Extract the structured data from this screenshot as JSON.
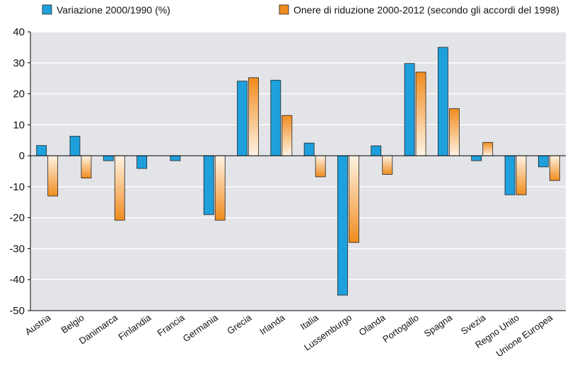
{
  "chart_data": {
    "type": "bar",
    "categories": [
      "Austria",
      "Belgio",
      "Danimarca",
      "Finlandia",
      "Francia",
      "Germania",
      "Grecia",
      "Irlanda",
      "Italia",
      "Lussemburgo",
      "Olanda",
      "Portogallo",
      "Spagna",
      "Svezia",
      "Regno Unito",
      "Unione Europea"
    ],
    "series": [
      {
        "name": "Variazione 2000/1990 (%)",
        "values": [
          3.3,
          6.3,
          -1.6,
          -4.1,
          -1.6,
          -19.0,
          24.1,
          24.4,
          4.1,
          -45.0,
          3.2,
          29.8,
          35.0,
          -1.6,
          -12.6,
          -3.6
        ]
      },
      {
        "name": "Onere di riduzione 2000-2012 (secondo gli accordi del 1998)",
        "values": [
          -13.0,
          -7.2,
          -20.8,
          0.0,
          0.0,
          -20.8,
          25.2,
          13.0,
          -6.8,
          -28.0,
          -6.0,
          27.0,
          15.2,
          4.3,
          -12.6,
          -8.0
        ]
      }
    ],
    "ylim": [
      -50,
      40
    ],
    "yticks": [
      40,
      30,
      20,
      10,
      0,
      -10,
      -20,
      -30,
      -40,
      -50
    ],
    "grid": true,
    "legend_position": "top",
    "colors": {
      "series1": "#1ea0dc",
      "series1_light": "#e8f6fd",
      "series2": "#f08c1e",
      "series2_light": "#fff3e4",
      "plot_background": "#e3e4e8",
      "gridline": "#ffffff",
      "axis": "#000000"
    }
  }
}
